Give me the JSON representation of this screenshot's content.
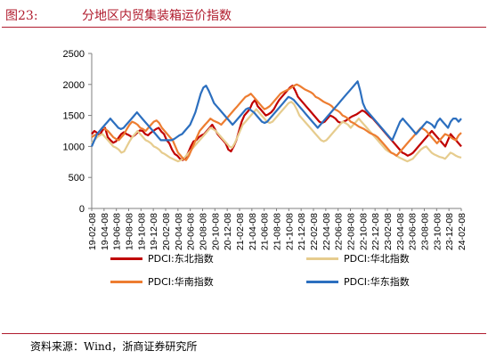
{
  "figure": {
    "label": "图23:",
    "title": "分地区内贸集装箱运价指数",
    "source": "资料来源：Wind，浙商证券研究所"
  },
  "chart_data": {
    "type": "line",
    "ylim": [
      0,
      2500
    ],
    "yticks": [
      0,
      500,
      1000,
      1500,
      2000,
      2500
    ],
    "xlim": [
      "2019-02-08",
      "2024-02-08"
    ],
    "xtick_labels": [
      "19-02-08",
      "19-04-08",
      "19-06-08",
      "19-08-08",
      "19-10-08",
      "19-12-08",
      "20-02-08",
      "20-04-08",
      "20-06-08",
      "20-08-08",
      "20-10-08",
      "20-12-08",
      "21-02-08",
      "21-04-08",
      "21-06-08",
      "21-08-08",
      "21-10-08",
      "21-12-08",
      "22-02-08",
      "22-04-08",
      "22-06-08",
      "22-08-08",
      "22-10-08",
      "22-12-08",
      "23-02-08",
      "23-04-08",
      "23-06-08",
      "23-08-08",
      "23-10-08",
      "23-12-08",
      "24-02-08"
    ],
    "legend_position": "bottom",
    "series": [
      {
        "name": "PDCI:东北指数",
        "color": "#c00000",
        "values": [
          1200,
          1250,
          1220,
          1180,
          1260,
          1300,
          1150,
          1100,
          1060,
          1080,
          1140,
          1200,
          1230,
          1200,
          1180,
          1150,
          1180,
          1220,
          1260,
          1250,
          1200,
          1180,
          1220,
          1250,
          1280,
          1300,
          1240,
          1200,
          1100,
          1050,
          950,
          880,
          850,
          800,
          780,
          820,
          900,
          1000,
          1080,
          1100,
          1150,
          1180,
          1200,
          1250,
          1300,
          1350,
          1280,
          1200,
          1150,
          1100,
          1050,
          950,
          920,
          1000,
          1100,
          1250,
          1400,
          1500,
          1550,
          1600,
          1700,
          1750,
          1650,
          1600,
          1550,
          1500,
          1520,
          1550,
          1600,
          1680,
          1750,
          1800,
          1850,
          1900,
          1950,
          1980,
          1900,
          1800,
          1750,
          1700,
          1650,
          1600,
          1550,
          1500,
          1450,
          1400,
          1380,
          1400,
          1450,
          1500,
          1480,
          1450,
          1400,
          1380,
          1400,
          1420,
          1450,
          1480,
          1500,
          1520,
          1550,
          1580,
          1560,
          1520,
          1480,
          1450,
          1400,
          1350,
          1300,
          1250,
          1200,
          1150,
          1100,
          1050,
          1000,
          950,
          900,
          880,
          850,
          870,
          900,
          950,
          1000,
          1050,
          1100,
          1150,
          1200,
          1250,
          1200,
          1150,
          1100,
          1050,
          1000,
          1100,
          1200,
          1150,
          1100,
          1050,
          1000
        ]
      },
      {
        "name": "PDCI:华北指数",
        "color": "#e6cc8e",
        "values": [
          1050,
          1100,
          1150,
          1180,
          1200,
          1150,
          1100,
          1050,
          1000,
          980,
          950,
          900,
          920,
          1000,
          1080,
          1150,
          1200,
          1250,
          1200,
          1150,
          1100,
          1080,
          1050,
          1000,
          980,
          950,
          900,
          880,
          850,
          820,
          800,
          780,
          760,
          780,
          800,
          850,
          900,
          950,
          1000,
          1050,
          1100,
          1150,
          1200,
          1250,
          1300,
          1280,
          1250,
          1200,
          1150,
          1100,
          1050,
          1000,
          980,
          1050,
          1150,
          1250,
          1350,
          1400,
          1450,
          1500,
          1550,
          1600,
          1550,
          1500,
          1450,
          1400,
          1380,
          1400,
          1450,
          1500,
          1550,
          1600,
          1650,
          1700,
          1720,
          1680,
          1600,
          1500,
          1450,
          1400,
          1350,
          1300,
          1250,
          1200,
          1150,
          1100,
          1080,
          1100,
          1150,
          1200,
          1250,
          1300,
          1350,
          1400,
          1380,
          1350,
          1300,
          1350,
          1400,
          1450,
          1400,
          1350,
          1300,
          1250,
          1200,
          1150,
          1100,
          1050,
          1000,
          950,
          920,
          900,
          880,
          850,
          820,
          800,
          780,
          760,
          780,
          800,
          850,
          900,
          950,
          980,
          1000,
          950,
          900,
          870,
          850,
          830,
          820,
          800,
          850,
          900,
          880,
          850,
          830,
          820
        ]
      },
      {
        "name": "PDCI:华南指数",
        "color": "#ed7d31",
        "values": [
          1150,
          1180,
          1200,
          1250,
          1300,
          1280,
          1250,
          1200,
          1150,
          1120,
          1100,
          1150,
          1200,
          1280,
          1350,
          1400,
          1380,
          1350,
          1300,
          1280,
          1250,
          1300,
          1350,
          1400,
          1420,
          1380,
          1300,
          1250,
          1200,
          1150,
          1100,
          1000,
          900,
          850,
          800,
          780,
          850,
          950,
          1050,
          1150,
          1250,
          1300,
          1350,
          1400,
          1450,
          1420,
          1400,
          1380,
          1350,
          1400,
          1450,
          1500,
          1550,
          1600,
          1650,
          1700,
          1750,
          1800,
          1820,
          1850,
          1800,
          1750,
          1700,
          1650,
          1600,
          1620,
          1650,
          1700,
          1750,
          1800,
          1850,
          1880,
          1900,
          1920,
          1950,
          1980,
          2000,
          1980,
          1950,
          1920,
          1900,
          1880,
          1850,
          1800,
          1780,
          1750,
          1720,
          1700,
          1680,
          1650,
          1600,
          1580,
          1550,
          1500,
          1480,
          1450,
          1400,
          1380,
          1350,
          1320,
          1300,
          1280,
          1250,
          1220,
          1200,
          1180,
          1150,
          1100,
          1050,
          1000,
          950,
          900,
          880,
          850,
          900,
          950,
          1000,
          1050,
          1100,
          1150,
          1200,
          1250,
          1300,
          1280,
          1250,
          1200,
          1150,
          1100,
          1050,
          1100,
          1150,
          1200,
          1180,
          1150,
          1120,
          1100,
          1180,
          1220
        ]
      },
      {
        "name": "PDCI:华东指数",
        "color": "#2c6fbf",
        "values": [
          1000,
          1100,
          1200,
          1250,
          1300,
          1350,
          1400,
          1450,
          1400,
          1350,
          1300,
          1280,
          1300,
          1350,
          1400,
          1450,
          1500,
          1550,
          1500,
          1450,
          1400,
          1350,
          1300,
          1250,
          1200,
          1150,
          1100,
          1100,
          1100,
          1100,
          1100,
          1120,
          1150,
          1180,
          1200,
          1250,
          1300,
          1350,
          1450,
          1550,
          1700,
          1850,
          1950,
          1980,
          1900,
          1800,
          1700,
          1650,
          1600,
          1550,
          1500,
          1450,
          1400,
          1350,
          1400,
          1450,
          1500,
          1550,
          1600,
          1620,
          1580,
          1550,
          1500,
          1450,
          1400,
          1380,
          1400,
          1450,
          1500,
          1550,
          1600,
          1650,
          1700,
          1750,
          1800,
          1780,
          1750,
          1700,
          1650,
          1600,
          1550,
          1500,
          1450,
          1400,
          1350,
          1300,
          1350,
          1400,
          1450,
          1500,
          1550,
          1600,
          1650,
          1700,
          1750,
          1800,
          1850,
          1900,
          1950,
          2000,
          2050,
          1900,
          1700,
          1600,
          1550,
          1500,
          1450,
          1400,
          1350,
          1300,
          1250,
          1200,
          1150,
          1100,
          1200,
          1300,
          1400,
          1450,
          1400,
          1350,
          1300,
          1250,
          1200,
          1250,
          1300,
          1350,
          1400,
          1380,
          1350,
          1300,
          1400,
          1450,
          1400,
          1350,
          1300,
          1400,
          1450,
          1450,
          1400,
          1450
        ]
      }
    ]
  }
}
